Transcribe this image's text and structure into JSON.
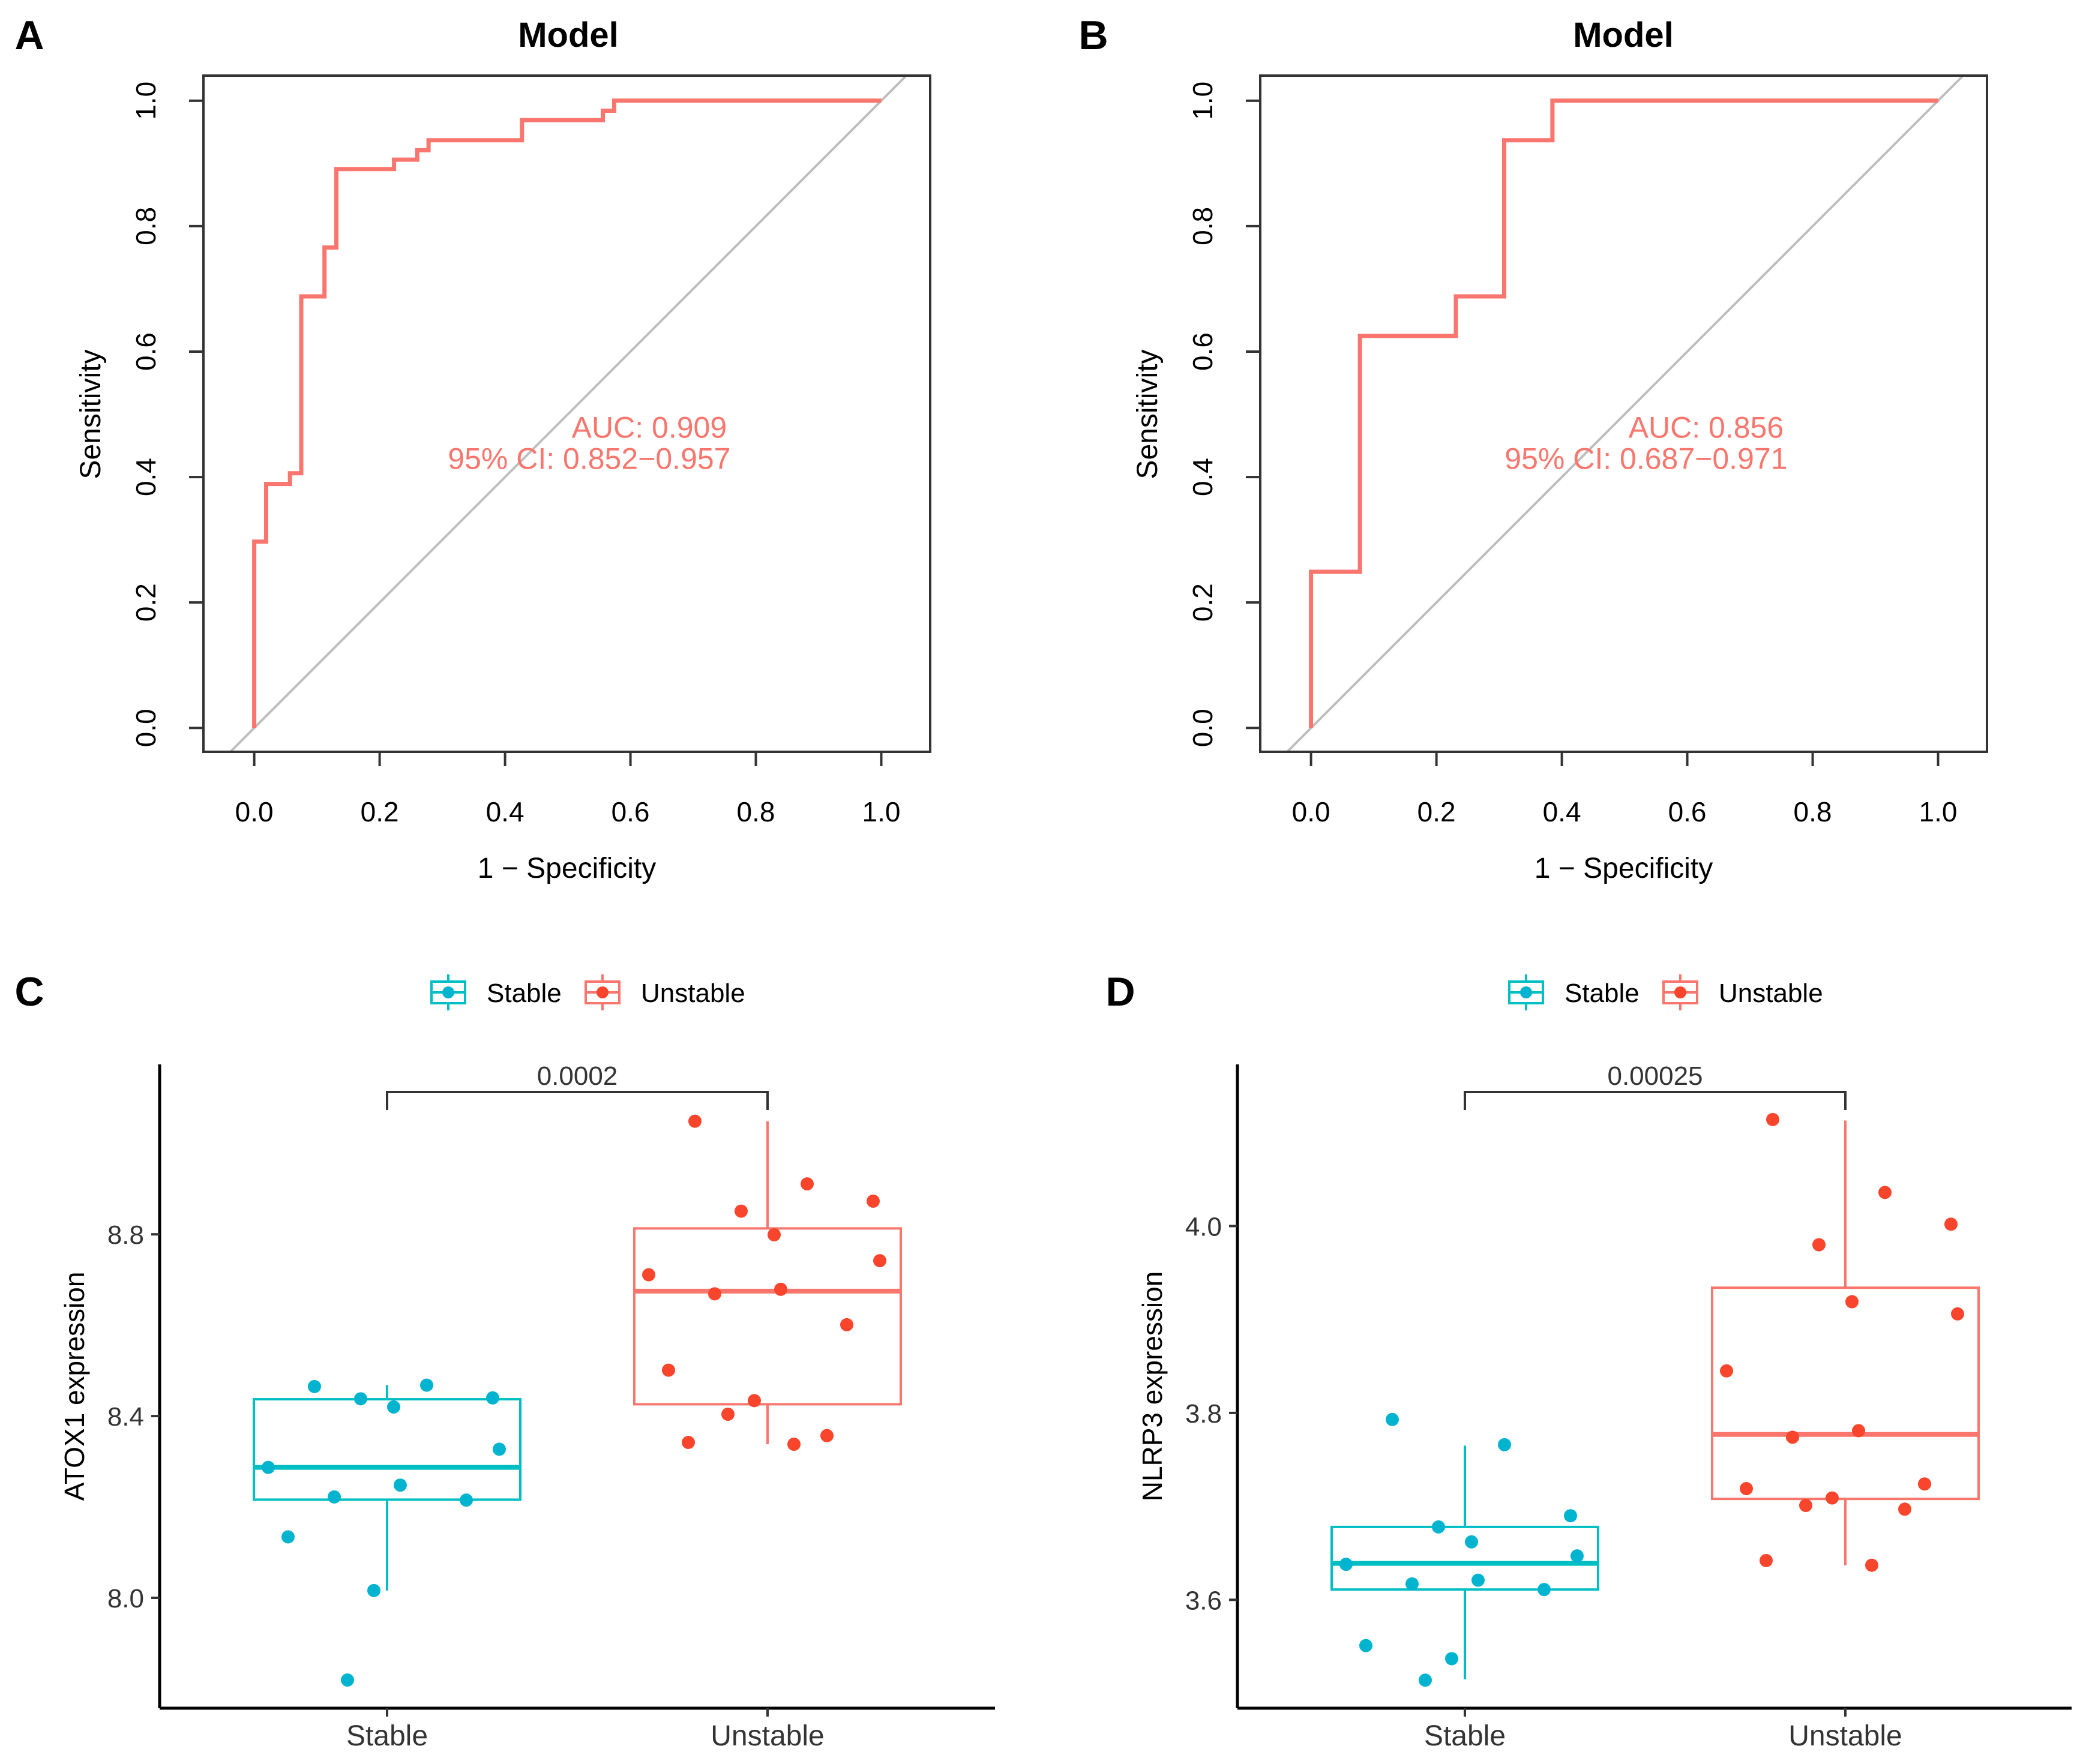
{
  "chart_data": [
    {
      "type": "line",
      "panel_label": "A",
      "title": "Model",
      "xlabel": "1 − Specificity",
      "ylabel": "Sensitivity",
      "xlim": [
        -0.081,
        1.078
      ],
      "ylim": [
        -0.038,
        1.04
      ],
      "xticks": [
        0.0,
        0.2,
        0.4,
        0.6,
        0.8,
        1.0
      ],
      "yticks": [
        0.0,
        0.2,
        0.4,
        0.6,
        0.8,
        1.0
      ],
      "grid": false,
      "reference_line": "diagonal",
      "color": "#F8766D",
      "reference_color": "#BEBEBE",
      "series": [
        {
          "x": [
            0,
            0,
            0.019,
            0.019,
            0.057,
            0.057,
            0.075,
            0.075,
            0.112,
            0.112,
            0.131,
            0.131,
            0.223,
            0.223,
            0.26,
            0.26,
            0.278,
            0.278,
            0.427,
            0.427,
            0.556,
            0.556,
            0.574,
            0.574,
            1.0
          ],
          "y": [
            0,
            0.297,
            0.297,
            0.389,
            0.389,
            0.406,
            0.406,
            0.688,
            0.688,
            0.766,
            0.766,
            0.891,
            0.891,
            0.906,
            0.906,
            0.921,
            0.921,
            0.937,
            0.937,
            0.969,
            0.969,
            0.984,
            0.984,
            1.0,
            1.0
          ]
        }
      ],
      "annotation": [
        "AUC: 0.909",
        "95% CI: 0.852−0.957"
      ]
    },
    {
      "type": "line",
      "panel_label": "B",
      "title": "Model",
      "xlabel": "1 − Specificity",
      "ylabel": "Sensitivity",
      "xlim": [
        -0.081,
        1.078
      ],
      "ylim": [
        -0.038,
        1.04
      ],
      "xticks": [
        0.0,
        0.2,
        0.4,
        0.6,
        0.8,
        1.0
      ],
      "yticks": [
        0.0,
        0.2,
        0.4,
        0.6,
        0.8,
        1.0
      ],
      "grid": false,
      "reference_line": "diagonal",
      "color": "#F8766D",
      "reference_color": "#BEBEBE",
      "series": [
        {
          "x": [
            0,
            0,
            0.078,
            0.078,
            0.231,
            0.231,
            0.308,
            0.308,
            0.385,
            0.385,
            1.0
          ],
          "y": [
            0,
            0.249,
            0.249,
            0.625,
            0.625,
            0.688,
            0.688,
            0.937,
            0.937,
            1.0,
            1.0
          ]
        }
      ],
      "annotation": [
        "AUC: 0.856",
        "95% CI: 0.687−0.971"
      ]
    },
    {
      "type": "box",
      "panel_label": "C",
      "categories": [
        "Stable",
        "Unstable"
      ],
      "ylabel": "ATOX1 expression",
      "ylim": [
        7.757,
        9.174
      ],
      "yticks": [
        8.0,
        8.4,
        8.8
      ],
      "grid": false,
      "legend": {
        "position": "top",
        "entries": [
          "Stable",
          "Unstable"
        ]
      },
      "colors": {
        "Stable": "#00BFC4",
        "Unstable": "#F8766D",
        "Stable_points": "#00B4D0",
        "Unstable_points": "#F8452C"
      },
      "groups": [
        {
          "name": "Stable",
          "whisker_low": 8.016,
          "q1": 8.216,
          "median": 8.287,
          "q3": 8.437,
          "whisker_high": 8.468,
          "points": [
            8.465,
            8.468,
            8.44,
            8.438,
            8.42,
            8.327,
            8.287,
            8.248,
            8.222,
            8.215,
            8.134,
            8.016,
            7.819
          ]
        },
        {
          "name": "Unstable",
          "whisker_low": 8.338,
          "q1": 8.426,
          "median": 8.675,
          "q3": 8.813,
          "whisker_high": 9.049,
          "points": [
            9.049,
            8.911,
            8.873,
            8.851,
            8.799,
            8.742,
            8.711,
            8.679,
            8.669,
            8.601,
            8.501,
            8.434,
            8.404,
            8.357,
            8.342,
            8.338
          ]
        }
      ],
      "pvalue": "0.0002"
    },
    {
      "type": "box",
      "panel_label": "D",
      "categories": [
        "Stable",
        "Unstable"
      ],
      "ylabel": "NLRP3 expression",
      "ylim": [
        3.484,
        4.173
      ],
      "yticks": [
        3.6,
        3.8,
        4.0
      ],
      "grid": false,
      "legend": {
        "position": "top",
        "entries": [
          "Stable",
          "Unstable"
        ]
      },
      "colors": {
        "Stable": "#00BFC4",
        "Unstable": "#F8766D",
        "Stable_points": "#00B4D0",
        "Unstable_points": "#F8452C"
      },
      "groups": [
        {
          "name": "Stable",
          "whisker_low": 3.515,
          "q1": 3.611,
          "median": 3.639,
          "q3": 3.678,
          "whisker_high": 3.765,
          "points": [
            3.793,
            3.766,
            3.69,
            3.678,
            3.662,
            3.647,
            3.638,
            3.621,
            3.617,
            3.611,
            3.551,
            3.537,
            3.514
          ]
        },
        {
          "name": "Unstable",
          "whisker_low": 3.637,
          "q1": 3.708,
          "median": 3.777,
          "q3": 3.934,
          "whisker_high": 4.113,
          "points": [
            4.114,
            4.036,
            4.002,
            3.98,
            3.919,
            3.906,
            3.845,
            3.781,
            3.774,
            3.724,
            3.719,
            3.709,
            3.701,
            3.697,
            3.642,
            3.637
          ]
        }
      ],
      "pvalue": "0.00025"
    }
  ]
}
